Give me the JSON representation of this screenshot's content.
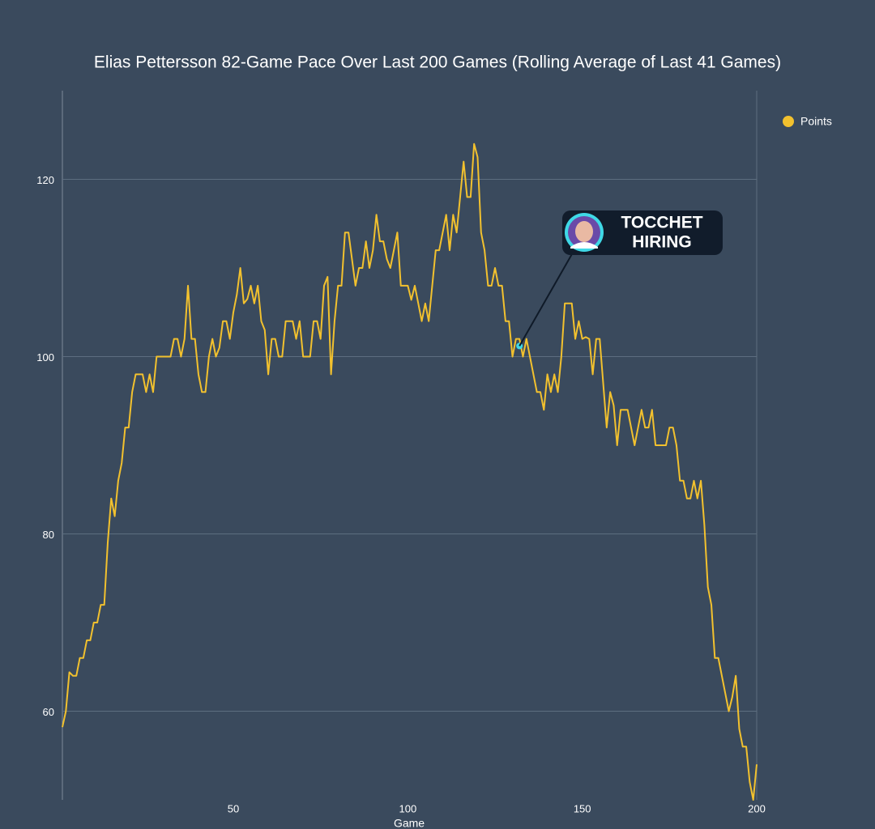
{
  "chart_data": {
    "type": "line",
    "title": "Elias Pettersson 82-Game Pace Over Last 200 Games (Rolling Average of Last 41 Games)",
    "x_label": "Game",
    "xlim": [
      1,
      200
    ],
    "xticks": [
      50,
      100,
      150,
      200
    ],
    "ylim": [
      50,
      130
    ],
    "yticks": [
      60,
      80,
      100,
      120
    ],
    "grid": true,
    "legend": "top-right",
    "series": [
      {
        "name": "Points",
        "color": "#f2c12e",
        "values": [
          58.2,
          60,
          64.4,
          64,
          64,
          66,
          66,
          68,
          68,
          70,
          70,
          72,
          72,
          79,
          84,
          82,
          86,
          88,
          92,
          92,
          96,
          98,
          98,
          98,
          96,
          98,
          96,
          100,
          100,
          100,
          100,
          100,
          102,
          102,
          100,
          102,
          108,
          102,
          102,
          98,
          96,
          96,
          100,
          102,
          100,
          101,
          104,
          104,
          102,
          105,
          107,
          110,
          106,
          106.5,
          108,
          106,
          108,
          104,
          103,
          98,
          102,
          102,
          100,
          100,
          104,
          104,
          104,
          102,
          104,
          100,
          100,
          100,
          104,
          104,
          102,
          108,
          109,
          98,
          104,
          108,
          108,
          114,
          114,
          111,
          108,
          110,
          110,
          113,
          110,
          112,
          116,
          113,
          113,
          111,
          110,
          112,
          114,
          108,
          108,
          108,
          106.4,
          108,
          106,
          104,
          106,
          104,
          108,
          112,
          112,
          114,
          116,
          112,
          116,
          114,
          118,
          122,
          118,
          118,
          124,
          122.5,
          114,
          112,
          108,
          108,
          110,
          108,
          108,
          104,
          104,
          100,
          102,
          102,
          100,
          102,
          100,
          98,
          96,
          96,
          94,
          98,
          96,
          98,
          96,
          100,
          106,
          106,
          106,
          102,
          104,
          102,
          102.2,
          102,
          98,
          102,
          102,
          97,
          92,
          96,
          94.5,
          90,
          94,
          94,
          94,
          92,
          90,
          92,
          94,
          92,
          92,
          94,
          90,
          90,
          90,
          90,
          92,
          92,
          90,
          86,
          86,
          84,
          84,
          86,
          84,
          86,
          81,
          74,
          72,
          66,
          66,
          64,
          62,
          60,
          61.6,
          64,
          58,
          56,
          56,
          52,
          50,
          54
        ]
      }
    ],
    "annotation": {
      "lines": [
        "TOCCHET",
        "HIRING"
      ],
      "x": 132,
      "y": 101.2,
      "color": "#3fd8e6"
    }
  }
}
